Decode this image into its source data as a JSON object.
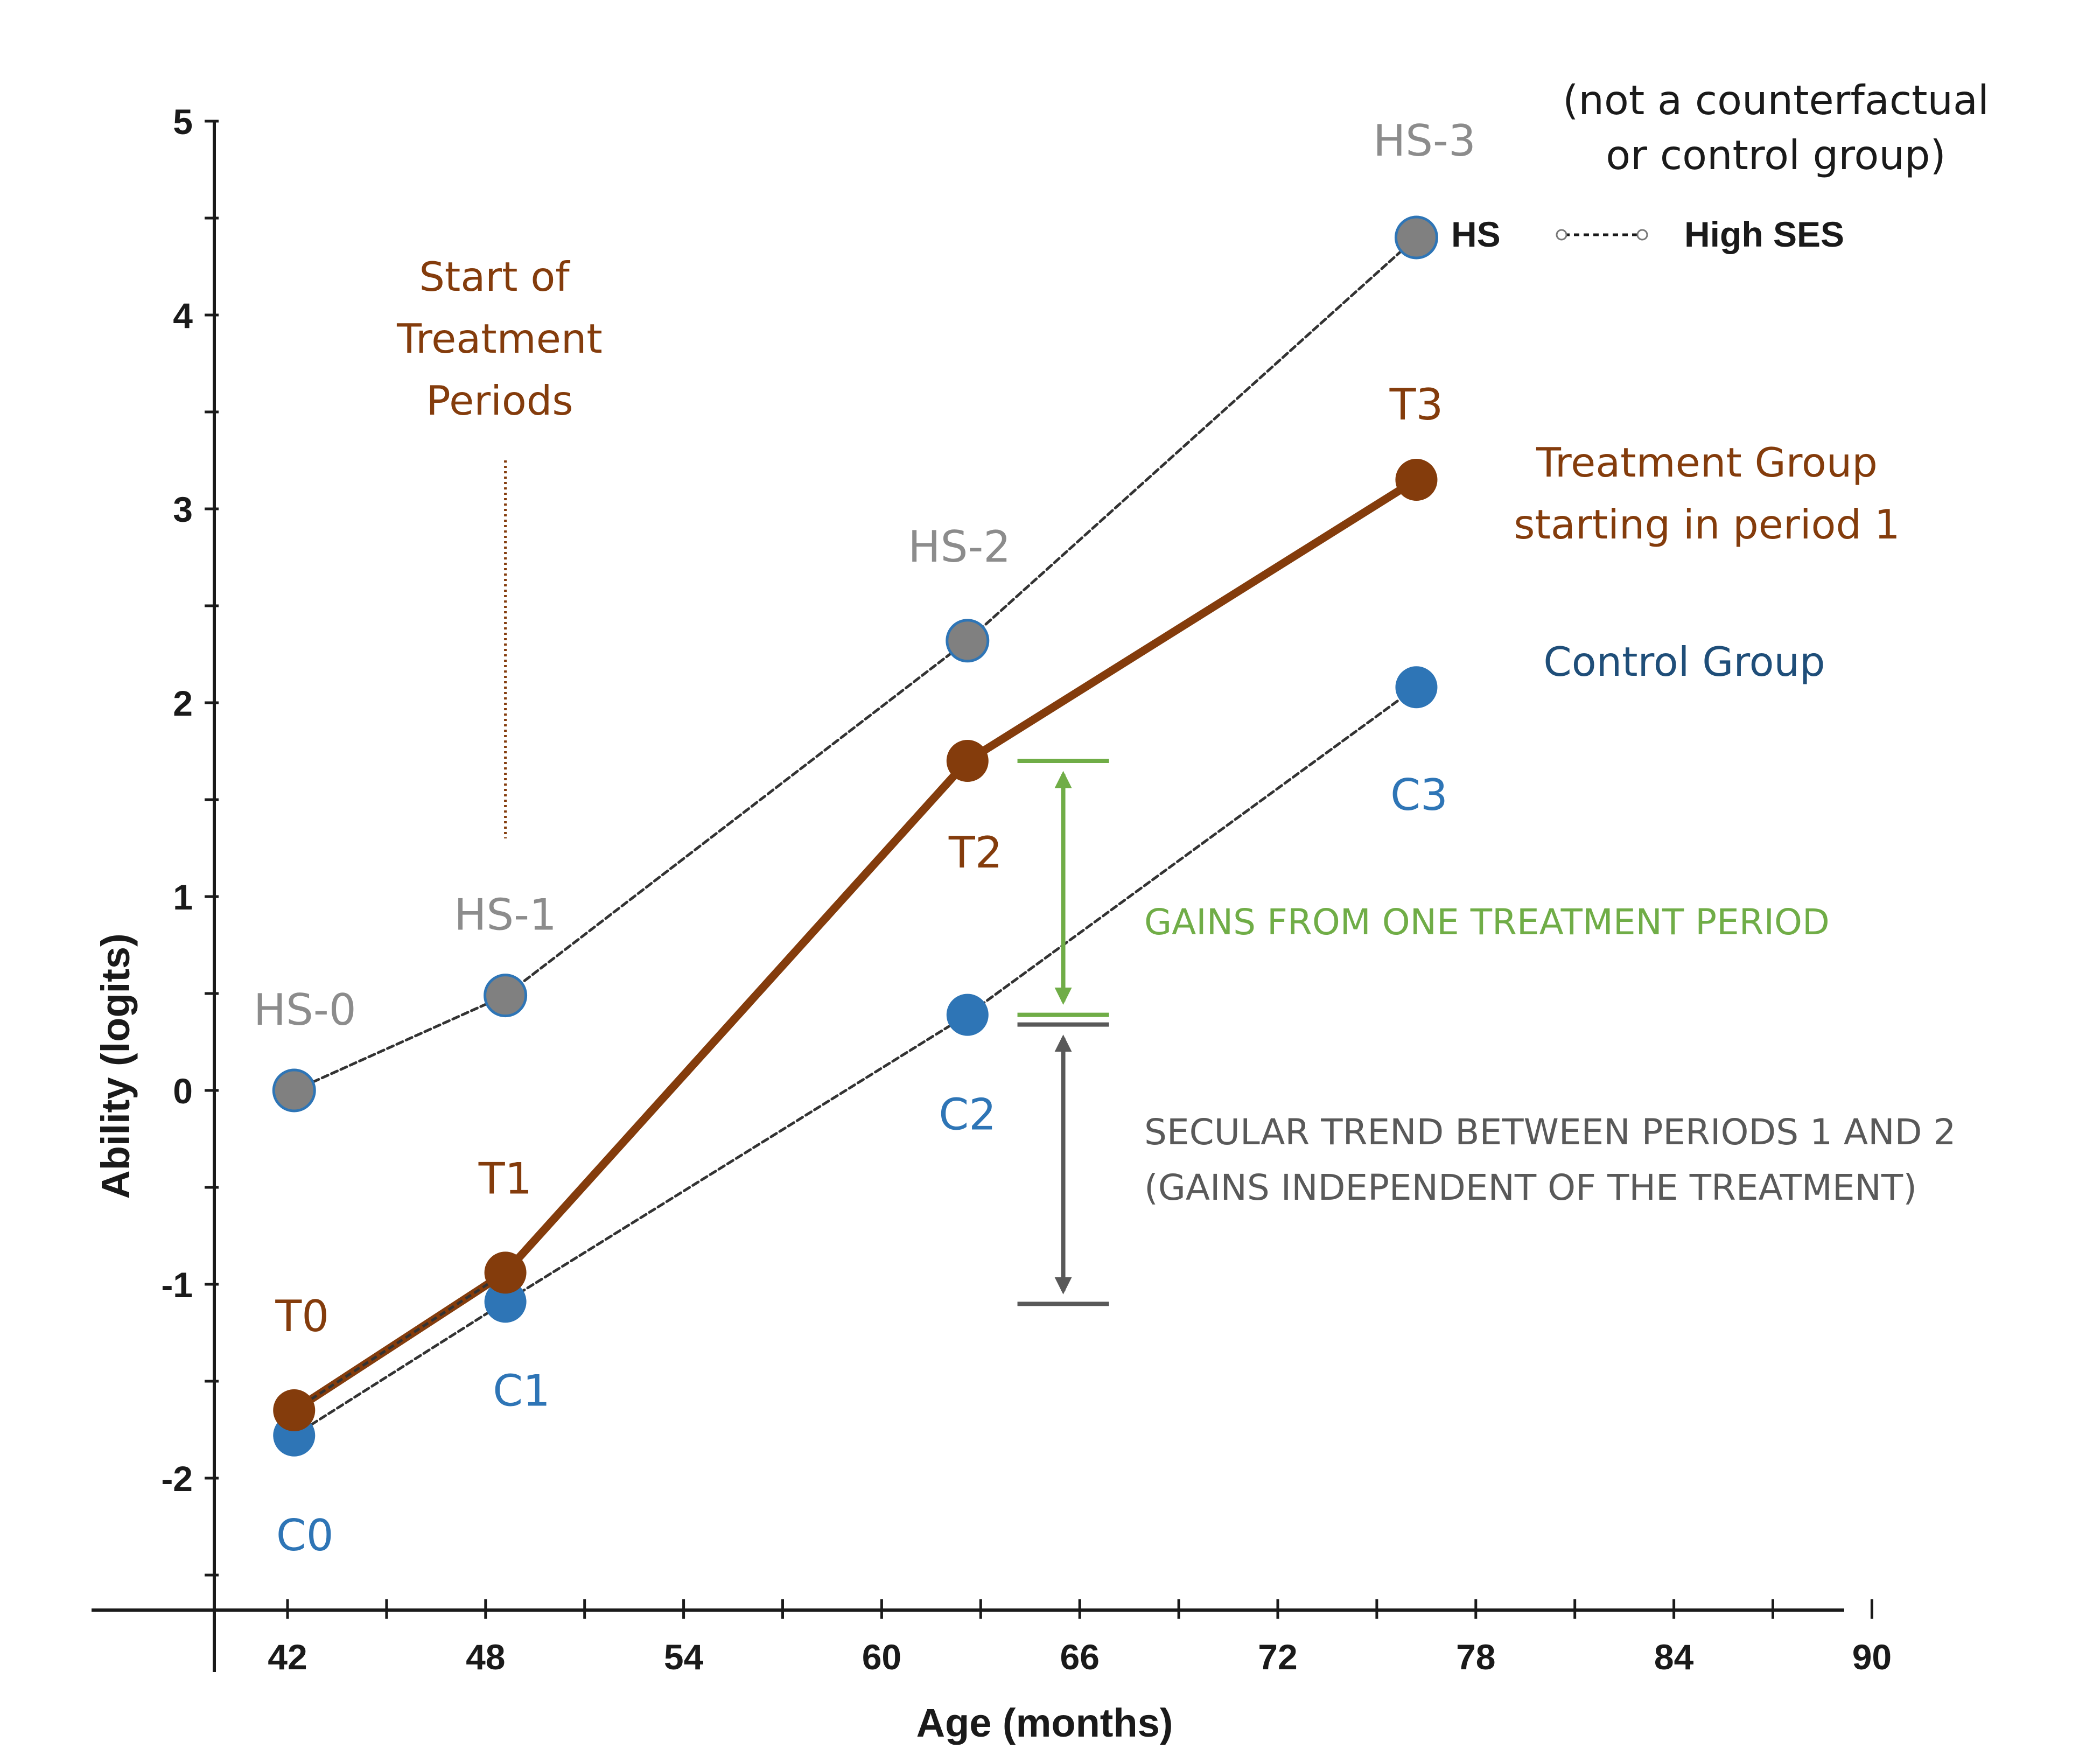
{
  "colors": {
    "hs": "#808080",
    "hs_stroke": "#2e75b6",
    "treatment": "#843c0c",
    "control": "#2e75b6",
    "control_text": "#1f4e79",
    "gains": "#70ad47",
    "secular": "#595959",
    "axis": "#1a1a1a"
  },
  "chart_data": {
    "type": "line",
    "xlabel": "Age (months)",
    "ylabel": "Ability (logits)",
    "xlim": [
      40,
      90
    ],
    "ylim": [
      -2.6,
      5
    ],
    "xticks": [
      42,
      48,
      54,
      60,
      66,
      72,
      78,
      84,
      90
    ],
    "yticks": [
      -2,
      -1,
      0,
      1,
      2,
      3,
      4,
      5
    ],
    "series": [
      {
        "name": "HS",
        "style": "dotted",
        "x": [
          42.2,
          48.6,
          62.6,
          76.2
        ],
        "y": [
          0.0,
          0.49,
          2.32,
          4.4
        ],
        "labels": [
          "HS-0",
          "HS-1",
          "HS-2",
          "HS-3"
        ]
      },
      {
        "name": "Treatment Group",
        "style": "solid",
        "x": [
          42.2,
          48.6,
          62.6,
          76.2
        ],
        "y": [
          -1.65,
          -0.94,
          1.7,
          3.15
        ],
        "labels": [
          "T0",
          "T1",
          "T2",
          "T3"
        ]
      },
      {
        "name": "Control Group",
        "style": "dotted",
        "x": [
          42.2,
          48.6,
          62.6,
          76.2
        ],
        "y": [
          -1.78,
          -1.09,
          0.39,
          2.08
        ],
        "labels": [
          "C0",
          "C1",
          "C2",
          "C3"
        ]
      }
    ],
    "legend": {
      "hs": "HS",
      "high_ses": "High SES"
    },
    "annotations": {
      "hs_note_line1": "(not a counterfactual",
      "hs_note_line2": "or control group)",
      "start_line1": "Start of",
      "start_line2": "Treatment",
      "start_line3": "Periods",
      "treatment_line1": "Treatment Group",
      "treatment_line2": "starting in period 1",
      "control": "Control Group",
      "gains": "GAINS FROM ONE TREATMENT PERIOD",
      "secular_line1": "SECULAR TREND BETWEEN PERIODS 1 AND 2",
      "secular_line2": "(GAINS INDEPENDENT OF THE TREATMENT)"
    },
    "brackets": {
      "gains": {
        "x": 65.5,
        "from": 0.39,
        "to": 1.7
      },
      "secular": {
        "x": 65.5,
        "from": -1.09,
        "to": 0.34
      }
    },
    "start_marker": {
      "x": 48.6,
      "from": 1.3,
      "to": 3.25
    }
  }
}
